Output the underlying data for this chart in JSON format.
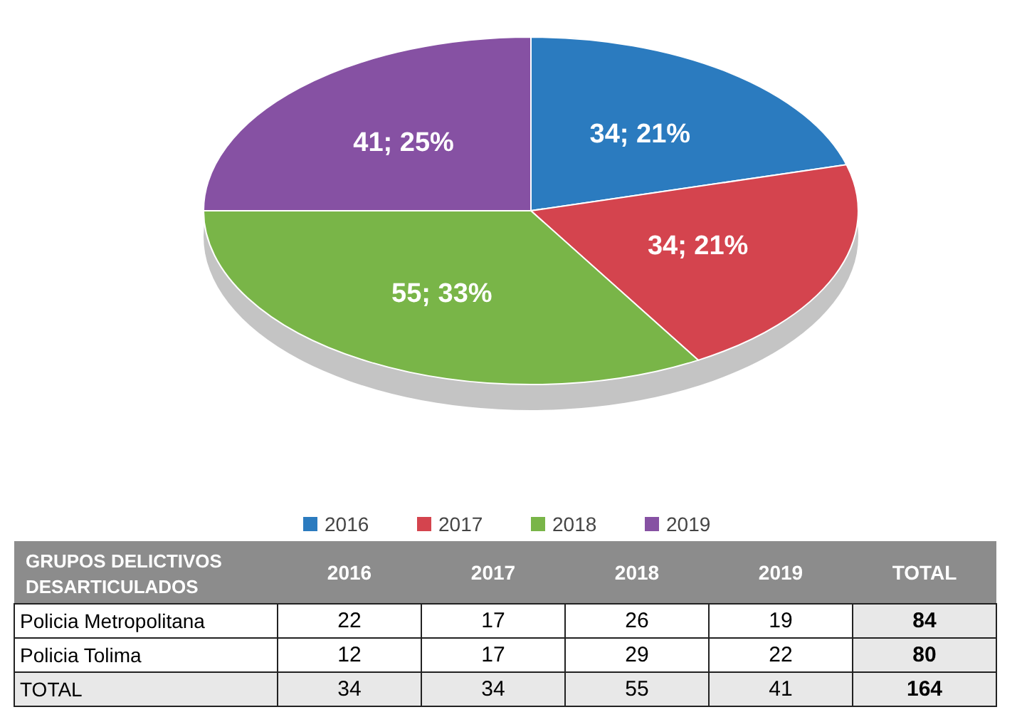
{
  "chart_data": [
    {
      "type": "pie",
      "categories": [
        "2016",
        "2017",
        "2018",
        "2019"
      ],
      "values": [
        34,
        34,
        55,
        41
      ],
      "colors": [
        "#2b7bbf",
        "#d4444e",
        "#79b548",
        "#8651a3"
      ],
      "value_labels": [
        "34; 21%",
        "34; 21%",
        "55; 33%",
        "41; 25%"
      ],
      "legend": "bottom"
    },
    {
      "type": "heatmap",
      "ylabel": "GRUPOS DELICTIVOS DESARTICULADOS",
      "categories": [
        "2016",
        "2017",
        "2018",
        "2019",
        "TOTAL"
      ],
      "y_categories": [
        "Policia Metropolitana",
        "Policia Tolima",
        "TOTAL"
      ],
      "cells": [
        [
          22,
          17,
          26,
          19,
          84
        ],
        [
          12,
          17,
          29,
          22,
          80
        ],
        [
          34,
          34,
          55,
          41,
          164
        ]
      ],
      "data_labels": true
    }
  ]
}
